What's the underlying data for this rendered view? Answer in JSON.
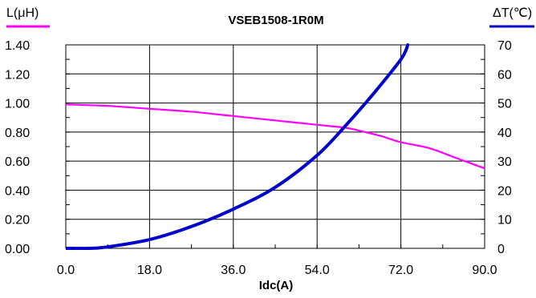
{
  "chart_data": {
    "type": "line",
    "title": "VSEB1508-1R0M",
    "xlabel": "Idc(A)",
    "ylabel_left": "L(μH)",
    "ylabel_right": "ΔT(℃)",
    "xlim": [
      0,
      90
    ],
    "ylim_left": [
      0,
      1.4
    ],
    "ylim_right": [
      0,
      70
    ],
    "x_ticks": [
      "0.0",
      "18.0",
      "36.0",
      "54.0",
      "72.0",
      "90.0"
    ],
    "y_left_ticks": [
      "0.00",
      "0.20",
      "0.40",
      "0.60",
      "0.80",
      "1.00",
      "1.20",
      "1.40"
    ],
    "y_right_ticks": [
      "0",
      "10",
      "20",
      "30",
      "40",
      "50",
      "60",
      "70"
    ],
    "grid": true,
    "series": [
      {
        "name": "L(μH)",
        "axis": "left",
        "color": "#ff00ff",
        "x": [
          0,
          9,
          18,
          27,
          36,
          45,
          54,
          60,
          63,
          68,
          72,
          78,
          84,
          90
        ],
        "y": [
          0.99,
          0.98,
          0.96,
          0.94,
          0.91,
          0.88,
          0.85,
          0.83,
          0.81,
          0.77,
          0.73,
          0.69,
          0.62,
          0.55
        ]
      },
      {
        "name": "ΔT(℃)",
        "axis": "right",
        "color": "#0000cc",
        "x": [
          0,
          5,
          9,
          18,
          27,
          36,
          45,
          54,
          60,
          66,
          72,
          73.5
        ],
        "y": [
          0,
          0,
          0.5,
          3,
          7.5,
          13.5,
          21,
          32,
          42,
          53,
          65,
          70
        ]
      }
    ]
  }
}
